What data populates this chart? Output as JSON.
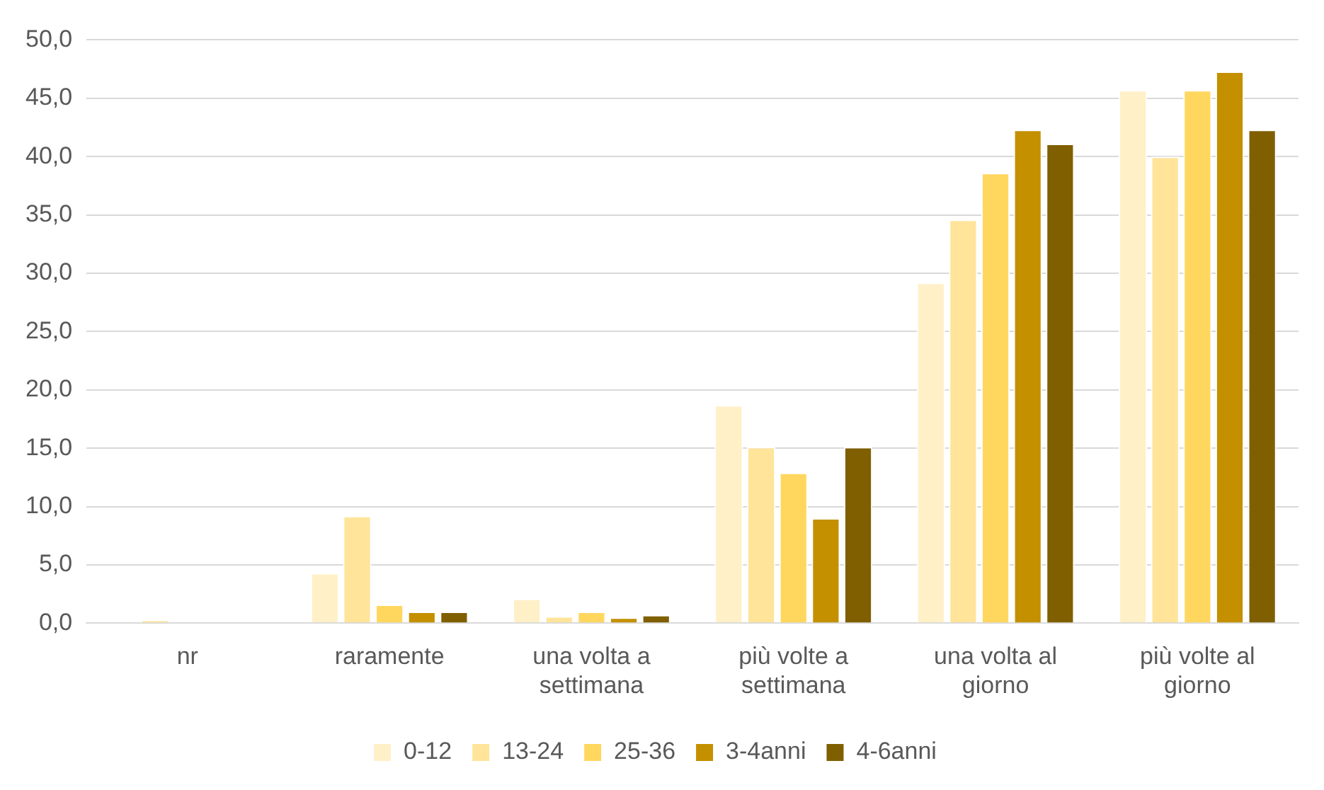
{
  "chart_data": {
    "type": "bar",
    "categories": [
      "nr",
      "raramente",
      "una volta a settimana",
      "più volte a settimana",
      "una volta al giorno",
      "più volte al giorno"
    ],
    "series": [
      {
        "name": "0-12",
        "color": "#fff0c8",
        "values": [
          0,
          4.3,
          2.1,
          18.7,
          29.2,
          45.7
        ]
      },
      {
        "name": "13-24",
        "color": "#ffe49a",
        "values": [
          0.3,
          9.2,
          0.6,
          15.1,
          34.6,
          40.0
        ]
      },
      {
        "name": "25-36",
        "color": "#ffd75e",
        "values": [
          0,
          1.6,
          1.0,
          12.9,
          38.6,
          45.7
        ]
      },
      {
        "name": "3-4anni",
        "color": "#c49000",
        "values": [
          0,
          1.0,
          0.5,
          9.0,
          42.3,
          47.3
        ]
      },
      {
        "name": "4-6anni",
        "color": "#7f5f00",
        "values": [
          0,
          1.0,
          0.7,
          15.1,
          41.1,
          42.3
        ]
      }
    ],
    "ylim": [
      0,
      50
    ],
    "yticks": [
      {
        "value": 0,
        "label": "0,0"
      },
      {
        "value": 5,
        "label": "5,0"
      },
      {
        "value": 10,
        "label": "10,0"
      },
      {
        "value": 15,
        "label": "15,0"
      },
      {
        "value": 20,
        "label": "20,0"
      },
      {
        "value": 25,
        "label": "25,0"
      },
      {
        "value": 30,
        "label": "30,0"
      },
      {
        "value": 35,
        "label": "35,0"
      },
      {
        "value": 40,
        "label": "40,0"
      },
      {
        "value": 45,
        "label": "45,0"
      },
      {
        "value": 50,
        "label": "50,0"
      }
    ],
    "grid": "y",
    "legend": "bottom"
  }
}
